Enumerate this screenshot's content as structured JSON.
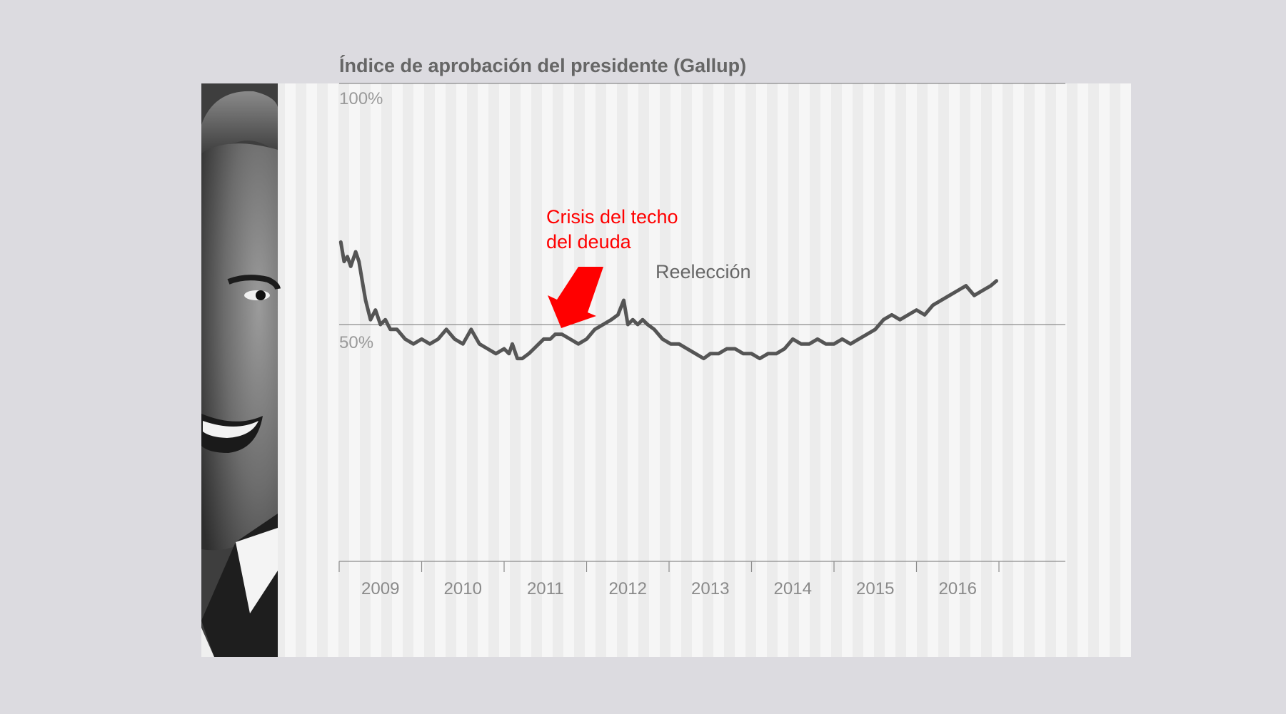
{
  "chart_data": {
    "type": "line",
    "title": "Índice de aprobación del presidente (Gallup)",
    "ylim": [
      0,
      100
    ],
    "y_ticks": [
      "100%",
      "50%"
    ],
    "x_categories": [
      "2009",
      "2010",
      "2011",
      "2012",
      "2013",
      "2014",
      "2015",
      "2016"
    ],
    "xlim": [
      2009.0,
      2017.8
    ],
    "reference_line": 50,
    "grid": true,
    "series": [
      {
        "color": "#555555",
        "x": [
          2009.02,
          2009.06,
          2009.1,
          2009.14,
          2009.2,
          2009.24,
          2009.28,
          2009.32,
          2009.38,
          2009.44,
          2009.5,
          2009.56,
          2009.62,
          2009.7,
          2009.8,
          2009.9,
          2010.0,
          2010.1,
          2010.2,
          2010.3,
          2010.4,
          2010.5,
          2010.6,
          2010.7,
          2010.8,
          2010.9,
          2011.0,
          2011.06,
          2011.1,
          2011.16,
          2011.22,
          2011.3,
          2011.36,
          2011.42,
          2011.48,
          2011.56,
          2011.62,
          2011.7,
          2011.8,
          2011.9,
          2012.0,
          2012.1,
          2012.2,
          2012.3,
          2012.38,
          2012.45,
          2012.5,
          2012.56,
          2012.62,
          2012.68,
          2012.74,
          2012.82,
          2012.92,
          2013.02,
          2013.12,
          2013.22,
          2013.32,
          2013.42,
          2013.5,
          2013.6,
          2013.7,
          2013.8,
          2013.9,
          2014.0,
          2014.1,
          2014.2,
          2014.3,
          2014.4,
          2014.5,
          2014.6,
          2014.7,
          2014.8,
          2014.9,
          2015.0,
          2015.1,
          2015.2,
          2015.3,
          2015.4,
          2015.5,
          2015.6,
          2015.7,
          2015.8,
          2015.9,
          2016.0,
          2016.1,
          2016.2,
          2016.3,
          2016.4,
          2016.5,
          2016.6,
          2016.7,
          2016.8,
          2016.9,
          2016.97
        ],
        "values": [
          67,
          63,
          64,
          62,
          65,
          63,
          59,
          55,
          51,
          53,
          50,
          51,
          49,
          49,
          47,
          46,
          47,
          46,
          47,
          49,
          47,
          46,
          49,
          46,
          45,
          44,
          45,
          44,
          46,
          43,
          43,
          44,
          45,
          46,
          47,
          47,
          48,
          48,
          47,
          46,
          47,
          49,
          50,
          51,
          52,
          55,
          50,
          51,
          50,
          51,
          50,
          49,
          47,
          46,
          46,
          45,
          44,
          43,
          44,
          44,
          45,
          45,
          44,
          44,
          43,
          44,
          44,
          45,
          47,
          46,
          46,
          47,
          46,
          46,
          47,
          46,
          47,
          48,
          49,
          51,
          52,
          51,
          52,
          53,
          52,
          54,
          55,
          56,
          57,
          58,
          56,
          57,
          58,
          59
        ]
      }
    ],
    "annotations": [
      {
        "text_lines": [
          "Crisis del techo",
          "del deuda"
        ],
        "color": "#ff0000"
      },
      {
        "text_lines": [
          "Reelección"
        ],
        "color": "#666666"
      }
    ]
  },
  "colors": {
    "background": "#dcdbe0",
    "panel": "#ececec",
    "stripe": "#f6f6f6",
    "line": "#555555",
    "accent": "#ff0000"
  },
  "icons": {
    "photo": "president-portrait-photo",
    "arrow": "red-down-arrow-icon"
  }
}
